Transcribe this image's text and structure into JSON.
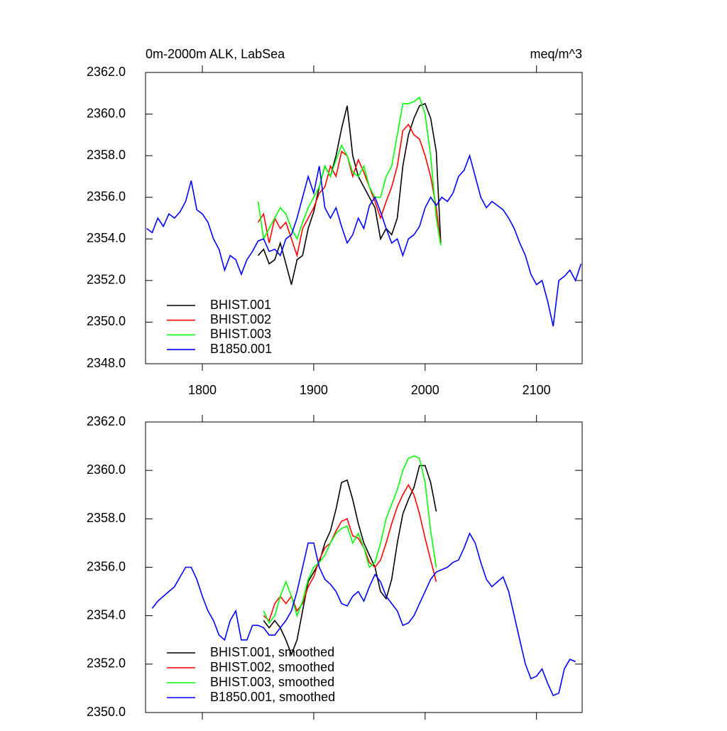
{
  "chart_data": [
    {
      "type": "line",
      "title": "0m-2000m ALK, LabSea",
      "units": "meq/m^3",
      "xlim": [
        1749,
        2141
      ],
      "xticks": [
        1800,
        1900,
        2000,
        2100
      ],
      "ylim": [
        2348,
        2362
      ],
      "yticks": [
        {
          "value": 2348,
          "label": "2348.0"
        },
        {
          "value": 2350,
          "label": "2350.0"
        },
        {
          "value": 2352,
          "label": "2352.0"
        },
        {
          "value": 2354,
          "label": "2354.0"
        },
        {
          "value": 2356,
          "label": "2356.0"
        },
        {
          "value": 2358,
          "label": "2358.0"
        },
        {
          "value": 2360,
          "label": "2360.0"
        },
        {
          "value": 2362,
          "label": "2362.0"
        }
      ],
      "legend": "lower left",
      "series": [
        {
          "name": "BHIST.001",
          "color": "#000000",
          "x": [
            1850,
            1855,
            1860,
            1865,
            1870,
            1875,
            1880,
            1885,
            1890,
            1895,
            1900,
            1905,
            1910,
            1915,
            1920,
            1925,
            1930,
            1935,
            1940,
            1945,
            1950,
            1955,
            1960,
            1965,
            1970,
            1975,
            1980,
            1985,
            1990,
            1995,
            2000,
            2005,
            2010,
            2014
          ],
          "values": [
            2353.2,
            2353.5,
            2352.8,
            2353.0,
            2353.8,
            2352.8,
            2351.8,
            2353.0,
            2353.2,
            2354.5,
            2355.3,
            2356.5,
            2357.5,
            2357.0,
            2358.0,
            2359.3,
            2360.4,
            2358.0,
            2357.0,
            2356.5,
            2356.0,
            2355.5,
            2354.0,
            2354.5,
            2354.2,
            2355.0,
            2357.5,
            2359.0,
            2359.8,
            2360.4,
            2360.5,
            2359.8,
            2358.2,
            2353.8
          ]
        },
        {
          "name": "BHIST.002",
          "color": "#ff0000",
          "x": [
            1850,
            1855,
            1860,
            1865,
            1870,
            1875,
            1880,
            1885,
            1890,
            1895,
            1900,
            1905,
            1910,
            1915,
            1920,
            1925,
            1930,
            1935,
            1940,
            1945,
            1950,
            1955,
            1960,
            1965,
            1970,
            1975,
            1980,
            1985,
            1990,
            1995,
            2000,
            2005,
            2010,
            2014
          ],
          "values": [
            2354.8,
            2355.2,
            2353.8,
            2355.0,
            2354.5,
            2354.8,
            2354.0,
            2353.2,
            2354.5,
            2355.0,
            2355.5,
            2356.2,
            2356.5,
            2357.5,
            2357.0,
            2358.2,
            2358.0,
            2357.0,
            2357.8,
            2357.2,
            2356.5,
            2355.8,
            2355.0,
            2355.8,
            2356.5,
            2357.5,
            2359.2,
            2359.5,
            2359.0,
            2358.8,
            2358.0,
            2357.0,
            2355.5,
            2353.7
          ]
        },
        {
          "name": "BHIST.003",
          "color": "#00ff00",
          "x": [
            1850,
            1855,
            1860,
            1865,
            1870,
            1875,
            1880,
            1885,
            1890,
            1895,
            1900,
            1905,
            1910,
            1915,
            1920,
            1925,
            1930,
            1935,
            1940,
            1945,
            1950,
            1955,
            1960,
            1965,
            1970,
            1975,
            1980,
            1985,
            1990,
            1995,
            2000,
            2005,
            2010,
            2014
          ],
          "values": [
            2355.8,
            2354.0,
            2354.5,
            2355.0,
            2355.5,
            2355.2,
            2354.5,
            2354.0,
            2354.8,
            2355.5,
            2356.0,
            2356.5,
            2357.5,
            2357.0,
            2357.8,
            2358.5,
            2358.0,
            2357.2,
            2357.0,
            2357.5,
            2356.5,
            2356.0,
            2356.0,
            2357.0,
            2357.5,
            2359.0,
            2360.5,
            2360.5,
            2360.6,
            2360.8,
            2360.0,
            2358.0,
            2355.0,
            2353.7
          ]
        },
        {
          "name": "B1850.001",
          "color": "#0000ff",
          "x": [
            1750,
            1755,
            1760,
            1765,
            1770,
            1775,
            1780,
            1785,
            1790,
            1795,
            1800,
            1805,
            1810,
            1815,
            1820,
            1825,
            1830,
            1835,
            1840,
            1845,
            1850,
            1855,
            1860,
            1865,
            1870,
            1875,
            1880,
            1885,
            1890,
            1895,
            1900,
            1905,
            1910,
            1915,
            1920,
            1925,
            1930,
            1935,
            1940,
            1945,
            1950,
            1955,
            1960,
            1965,
            1970,
            1975,
            1980,
            1985,
            1990,
            1995,
            2000,
            2005,
            2010,
            2015,
            2020,
            2025,
            2030,
            2035,
            2040,
            2045,
            2050,
            2055,
            2060,
            2065,
            2070,
            2075,
            2080,
            2085,
            2090,
            2095,
            2100,
            2105,
            2110,
            2115,
            2120,
            2125,
            2130,
            2135,
            2140
          ],
          "values": [
            2354.5,
            2354.3,
            2355.0,
            2354.6,
            2355.2,
            2355.0,
            2355.3,
            2355.8,
            2356.8,
            2355.4,
            2355.2,
            2354.8,
            2354.0,
            2353.5,
            2352.5,
            2353.2,
            2353.0,
            2352.3,
            2353.0,
            2353.4,
            2353.9,
            2354.0,
            2353.4,
            2353.5,
            2353.2,
            2354.0,
            2354.2,
            2355.0,
            2356.0,
            2357.0,
            2356.2,
            2357.5,
            2355.5,
            2355.0,
            2355.5,
            2354.6,
            2353.8,
            2354.2,
            2355.0,
            2354.5,
            2355.6,
            2356.0,
            2355.3,
            2354.5,
            2353.8,
            2354.0,
            2353.2,
            2354.0,
            2354.2,
            2354.6,
            2355.5,
            2356.0,
            2355.6,
            2356.0,
            2355.8,
            2356.2,
            2357.0,
            2357.3,
            2358.0,
            2357.0,
            2356.0,
            2355.5,
            2355.8,
            2355.6,
            2355.4,
            2355.0,
            2354.5,
            2353.8,
            2353.2,
            2352.3,
            2351.8,
            2352.0,
            2351.0,
            2349.8,
            2352.0,
            2352.2,
            2352.5,
            2352.0,
            2352.8
          ]
        }
      ]
    },
    {
      "type": "line",
      "xlim": [
        1749,
        2141
      ],
      "ylim": [
        2350,
        2362
      ],
      "yticks": [
        {
          "value": 2350,
          "label": "2350.0"
        },
        {
          "value": 2352,
          "label": "2352.0"
        },
        {
          "value": 2354,
          "label": "2354.0"
        },
        {
          "value": 2356,
          "label": "2356.0"
        },
        {
          "value": 2358,
          "label": "2358.0"
        },
        {
          "value": 2360,
          "label": "2360.0"
        },
        {
          "value": 2362,
          "label": "2362.0"
        }
      ],
      "legend": "lower left",
      "series": [
        {
          "name": "BHIST.001, smoothed",
          "color": "#000000",
          "x": [
            1855,
            1860,
            1865,
            1870,
            1875,
            1880,
            1885,
            1890,
            1895,
            1900,
            1905,
            1910,
            1915,
            1920,
            1925,
            1930,
            1935,
            1940,
            1945,
            1950,
            1955,
            1960,
            1965,
            1970,
            1975,
            1980,
            1985,
            1990,
            1995,
            2000,
            2005,
            2010
          ],
          "values": [
            2353.8,
            2353.5,
            2353.8,
            2353.5,
            2353.0,
            2352.4,
            2353.0,
            2354.2,
            2355.4,
            2355.8,
            2356.2,
            2357.0,
            2357.5,
            2358.4,
            2359.5,
            2359.6,
            2358.8,
            2357.8,
            2357.0,
            2356.5,
            2356.0,
            2355.0,
            2354.7,
            2355.5,
            2357.0,
            2358.2,
            2358.8,
            2359.3,
            2360.2,
            2360.2,
            2359.5,
            2358.3
          ]
        },
        {
          "name": "BHIST.002, smoothed",
          "color": "#ff0000",
          "x": [
            1855,
            1860,
            1865,
            1870,
            1875,
            1880,
            1885,
            1890,
            1895,
            1900,
            1905,
            1910,
            1915,
            1920,
            1925,
            1930,
            1935,
            1940,
            1945,
            1950,
            1955,
            1960,
            1965,
            1970,
            1975,
            1980,
            1985,
            1990,
            1995,
            2000,
            2005,
            2010
          ],
          "values": [
            2354.0,
            2353.8,
            2354.5,
            2354.8,
            2354.5,
            2354.8,
            2354.2,
            2354.5,
            2355.2,
            2355.6,
            2356.3,
            2356.8,
            2357.0,
            2357.5,
            2357.9,
            2358.0,
            2357.3,
            2357.2,
            2356.8,
            2356.2,
            2356.0,
            2356.3,
            2357.0,
            2357.8,
            2358.5,
            2359.0,
            2359.4,
            2359.0,
            2358.2,
            2357.2,
            2356.3,
            2355.4
          ]
        },
        {
          "name": "BHIST.003, smoothed",
          "color": "#00ff00",
          "x": [
            1855,
            1860,
            1865,
            1870,
            1875,
            1880,
            1885,
            1890,
            1895,
            1900,
            1905,
            1910,
            1915,
            1920,
            1925,
            1930,
            1935,
            1940,
            1945,
            1950,
            1955,
            1960,
            1965,
            1970,
            1975,
            1980,
            1985,
            1990,
            1995,
            2000,
            2005,
            2010
          ],
          "values": [
            2354.2,
            2353.7,
            2354.0,
            2354.8,
            2355.4,
            2354.8,
            2354.0,
            2354.6,
            2355.5,
            2356.0,
            2356.2,
            2356.5,
            2357.0,
            2357.4,
            2357.6,
            2357.7,
            2357.0,
            2357.4,
            2356.8,
            2356.0,
            2356.2,
            2357.0,
            2358.0,
            2358.6,
            2359.2,
            2360.0,
            2360.5,
            2360.6,
            2360.5,
            2359.5,
            2357.5,
            2356.0
          ]
        },
        {
          "name": "B1850.001, smoothed",
          "color": "#0000ff",
          "x": [
            1755,
            1760,
            1765,
            1770,
            1775,
            1780,
            1785,
            1790,
            1795,
            1800,
            1805,
            1810,
            1815,
            1820,
            1825,
            1830,
            1835,
            1840,
            1845,
            1850,
            1855,
            1860,
            1865,
            1870,
            1875,
            1880,
            1885,
            1890,
            1895,
            1900,
            1905,
            1910,
            1915,
            1920,
            1925,
            1930,
            1935,
            1940,
            1945,
            1950,
            1955,
            1960,
            1965,
            1970,
            1975,
            1980,
            1985,
            1990,
            1995,
            2000,
            2005,
            2010,
            2015,
            2020,
            2025,
            2030,
            2035,
            2040,
            2045,
            2050,
            2055,
            2060,
            2065,
            2070,
            2075,
            2080,
            2085,
            2090,
            2095,
            2100,
            2105,
            2110,
            2115,
            2120,
            2125,
            2130,
            2135
          ],
          "values": [
            2354.3,
            2354.6,
            2354.8,
            2355.0,
            2355.2,
            2355.6,
            2356.0,
            2356.0,
            2355.5,
            2354.8,
            2354.2,
            2353.8,
            2353.2,
            2353.0,
            2353.8,
            2354.2,
            2353.0,
            2353.0,
            2353.6,
            2353.6,
            2353.5,
            2353.2,
            2353.2,
            2353.5,
            2353.8,
            2354.2,
            2355.0,
            2356.0,
            2357.0,
            2357.0,
            2356.0,
            2355.5,
            2355.3,
            2355.0,
            2354.5,
            2354.4,
            2354.8,
            2355.0,
            2354.6,
            2355.2,
            2355.7,
            2355.4,
            2354.8,
            2354.5,
            2354.2,
            2353.6,
            2353.7,
            2354.0,
            2354.5,
            2355.0,
            2355.5,
            2355.8,
            2355.9,
            2356.0,
            2356.2,
            2356.3,
            2356.8,
            2357.4,
            2357.0,
            2356.2,
            2355.5,
            2355.2,
            2355.4,
            2355.6,
            2355.0,
            2354.0,
            2353.0,
            2352.0,
            2351.4,
            2351.5,
            2351.8,
            2351.2,
            2350.7,
            2350.8,
            2351.8,
            2352.2,
            2352.1
          ]
        }
      ]
    }
  ]
}
